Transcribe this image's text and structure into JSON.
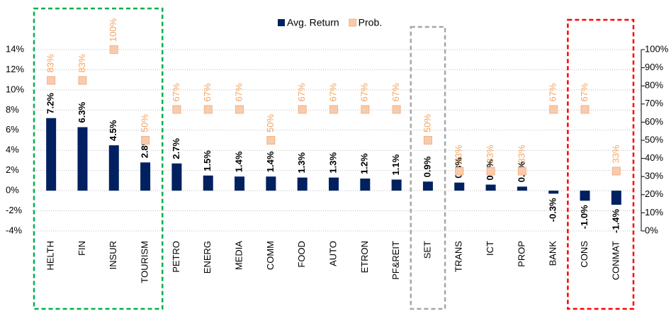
{
  "chart_data": {
    "type": "bar",
    "categories": [
      "HELTH",
      "FIN",
      "INSUR",
      "TOURISM",
      "PETRO",
      "ENERG",
      "MEDIA",
      "COMM",
      "FOOD",
      "AUTO",
      "ETRON",
      "PF&REIT",
      "SET",
      "TRANS",
      "ICT",
      "PROP",
      "BANK",
      "CONS",
      "CONMAT"
    ],
    "series": [
      {
        "name": "Avg. Return",
        "type": "bar",
        "color": "#002060",
        "values": [
          7.2,
          6.3,
          4.5,
          2.8,
          2.7,
          1.5,
          1.4,
          1.4,
          1.3,
          1.3,
          1.2,
          1.1,
          0.9,
          0.8,
          0.6,
          0.4,
          -0.3,
          -1.0,
          -1.4
        ],
        "value_labels": [
          "7.2%",
          "6.3%",
          "4.5%",
          "2.8%",
          "2.7%",
          "1.5%",
          "1.4%",
          "1.4%",
          "1.3%",
          "1.3%",
          "1.2%",
          "1.1%",
          "0.9%",
          "0.8%",
          "0.6%",
          "0.4%",
          "-0.3%",
          "-1.0%",
          "-1.4%"
        ]
      },
      {
        "name": "Prob.",
        "type": "scatter",
        "color": "#f8cbad",
        "label_color": "#f4a460",
        "axis": "y2",
        "values": [
          83,
          83,
          100,
          50,
          67,
          67,
          67,
          50,
          67,
          67,
          67,
          67,
          50,
          33,
          33,
          33,
          67,
          67,
          33
        ],
        "value_labels": [
          "83%",
          "83%",
          "100%",
          "50%",
          "67%",
          "67%",
          "67%",
          "50%",
          "67%",
          "67%",
          "67%",
          "67%",
          "50%",
          "33%",
          "33%",
          "33%",
          "67%",
          "67%",
          "33%"
        ]
      }
    ],
    "ylim": [
      -4,
      14
    ],
    "yticks": [
      {
        "value": -4,
        "label": "-4%"
      },
      {
        "value": -2,
        "label": "-2%"
      },
      {
        "value": 0,
        "label": "0%"
      },
      {
        "value": 2,
        "label": "2%"
      },
      {
        "value": 4,
        "label": "4%"
      },
      {
        "value": 6,
        "label": "6%"
      },
      {
        "value": 8,
        "label": "8%"
      },
      {
        "value": 10,
        "label": "10%"
      },
      {
        "value": 12,
        "label": "12%"
      },
      {
        "value": 14,
        "label": "14%"
      }
    ],
    "y2lim": [
      0,
      100
    ],
    "y2ticks": [
      {
        "value": 0,
        "label": "0%"
      },
      {
        "value": 10,
        "label": "10%"
      },
      {
        "value": 20,
        "label": "20%"
      },
      {
        "value": 30,
        "label": "30%"
      },
      {
        "value": 40,
        "label": "40%"
      },
      {
        "value": 50,
        "label": "50%"
      },
      {
        "value": 60,
        "label": "60%"
      },
      {
        "value": 70,
        "label": "70%"
      },
      {
        "value": 80,
        "label": "80%"
      },
      {
        "value": 90,
        "label": "90%"
      },
      {
        "value": 100,
        "label": "100%"
      }
    ],
    "grid": true,
    "legend": "top"
  }
}
